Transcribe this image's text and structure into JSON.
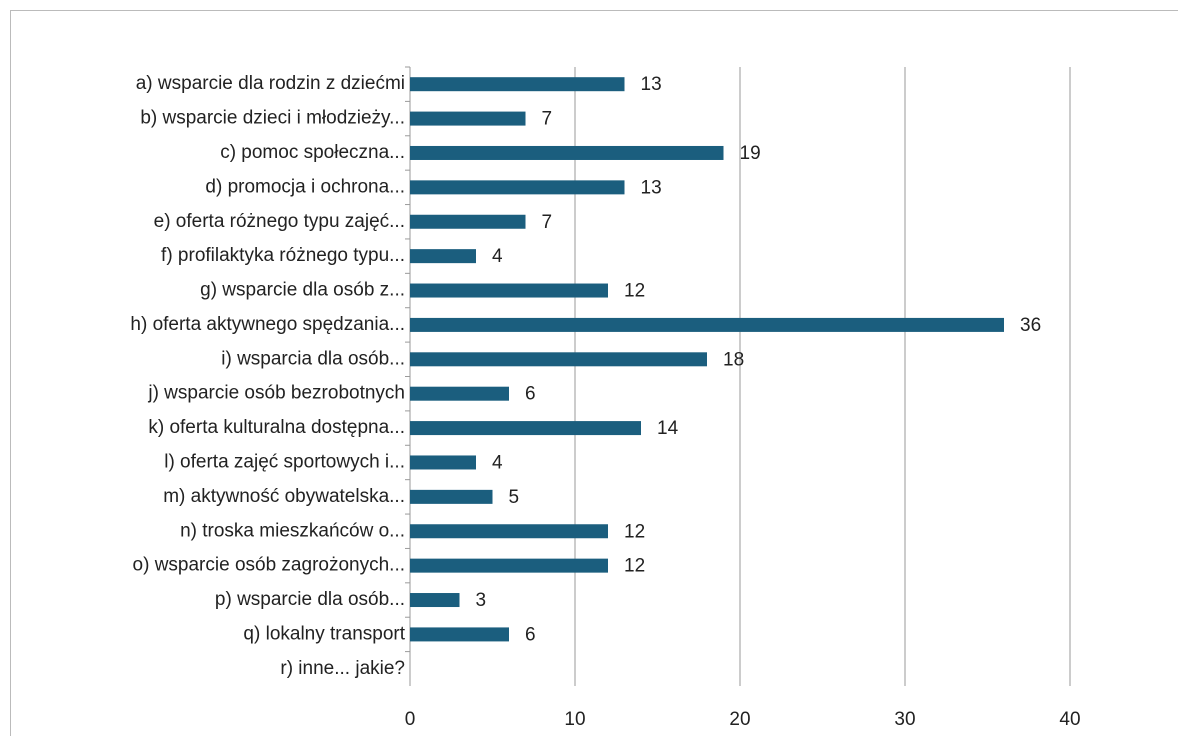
{
  "chart_data": {
    "type": "bar",
    "orientation": "horizontal",
    "categories": [
      "a) wsparcie dla rodzin z dziećmi",
      "b) wsparcie dzieci i młodzieży...",
      "c) pomoc społeczna...",
      "d)  promocja i ochrona...",
      "e) oferta różnego typu zajęć...",
      "f) profilaktyka różnego typu...",
      "g) wsparcie dla osób z...",
      "h) oferta aktywnego spędzania...",
      "i) wsparcia dla osób...",
      "j) wsparcie osób bezrobotnych",
      "k) oferta kulturalna dostępna...",
      "l) oferta zajęć sportowych i...",
      "m) aktywność obywatelska...",
      "n) troska mieszkańców o...",
      "o) wsparcie osób zagrożonych...",
      "p) wsparcie dla osób...",
      "q) lokalny transport",
      "r) inne... jakie?"
    ],
    "values": [
      13,
      7,
      19,
      13,
      7,
      4,
      12,
      36,
      18,
      6,
      14,
      4,
      5,
      12,
      12,
      3,
      6,
      null
    ],
    "color": "#1b5e7e",
    "xlim": [
      0,
      40
    ],
    "xticks": [
      0,
      10,
      20,
      30,
      40
    ],
    "grid": true
  }
}
